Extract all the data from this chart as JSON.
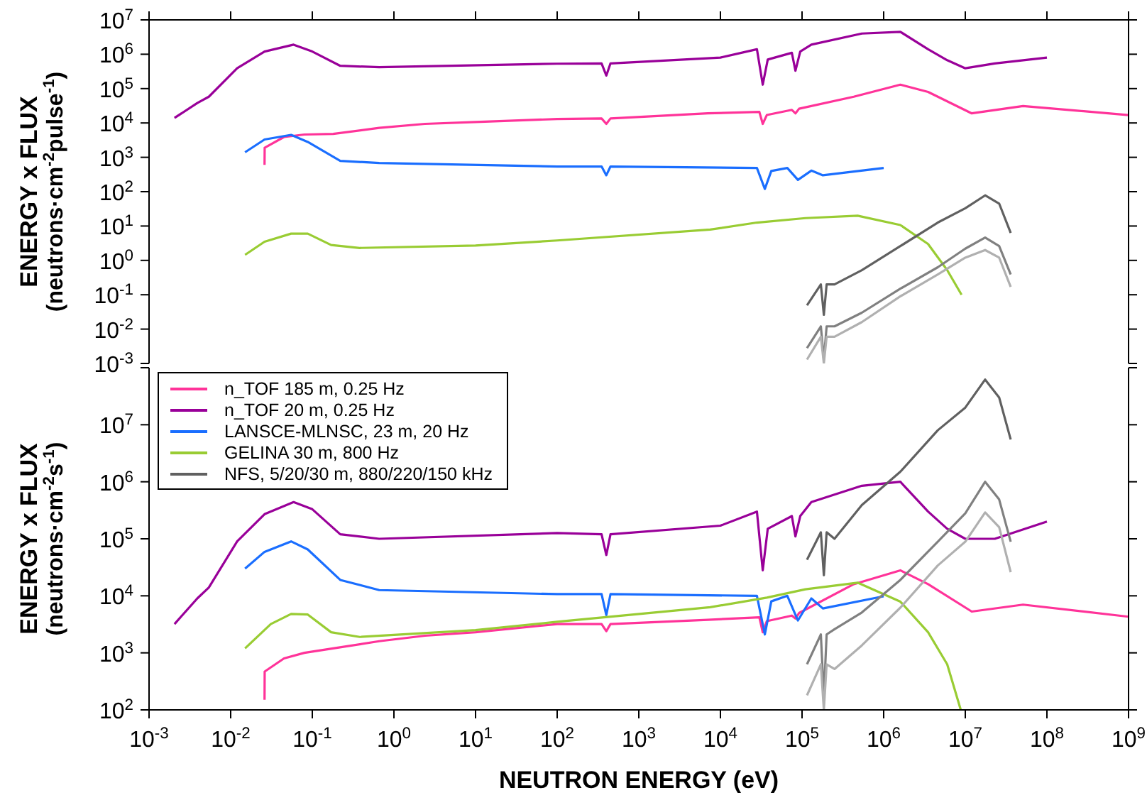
{
  "chart_data": [
    {
      "type": "line",
      "ylabel": "ENERGY x FLUX (neutrons·cm$^{-2}$pulse$^{-1}$)",
      "log": "xy",
      "legend": false,
      "marker": "none",
      "tick_labels": "y",
      "xlim": [
        0.001,
        1000000000
      ],
      "xticks": [
        {
          "value": 0.001,
          "label": null
        },
        {
          "value": 0.01,
          "label": null
        },
        {
          "value": 0.1,
          "label": null
        },
        {
          "value": 1,
          "label": null
        },
        {
          "value": 10,
          "label": null
        },
        {
          "value": 100,
          "label": null
        },
        {
          "value": 1000,
          "label": null
        },
        {
          "value": 10000,
          "label": null
        },
        {
          "value": 100000,
          "label": null
        },
        {
          "value": 1000000,
          "label": null
        },
        {
          "value": 10000000,
          "label": null
        },
        {
          "value": 100000000,
          "label": null
        },
        {
          "value": 1000000000,
          "label": null
        }
      ],
      "ylim": [
        0.001,
        10000000
      ],
      "yticks": [
        {
          "value": 0.001,
          "label": "10$^{-3}$"
        },
        {
          "value": 0.01,
          "label": "10$^{-2}$"
        },
        {
          "value": 0.1,
          "label": "10$^{-1}$"
        },
        {
          "value": 1,
          "label": "10$^{0}$"
        },
        {
          "value": 10,
          "label": "10$^{1}$"
        },
        {
          "value": 100,
          "label": "10$^{2}$"
        },
        {
          "value": 1000,
          "label": "10$^{3}$"
        },
        {
          "value": 10000,
          "label": "10$^{4}$"
        },
        {
          "value": 100000,
          "label": "10$^{5}$"
        },
        {
          "value": 1000000,
          "label": "10$^{6}$"
        },
        {
          "value": 10000000,
          "label": "10$^{7}$"
        }
      ],
      "series": [
        {
          "color": "#ff3399",
          "x": [
            0.026,
            0.0261,
            0.045,
            0.08,
            0.18,
            0.66,
            2.4,
            10,
            100,
            350,
            400,
            450,
            7000,
            30000,
            33000,
            37000,
            75000,
            83000,
            92000,
            430000,
            1600000,
            3500000,
            12000000,
            51000000,
            1000000000
          ],
          "values": [
            600,
            1900,
            3900,
            4600,
            4800,
            7200,
            9400,
            10700,
            13000,
            13500,
            9400,
            13500,
            19000,
            21000,
            9400,
            17000,
            24000,
            19000,
            26000,
            58000,
            130000,
            80000,
            19000,
            31000,
            17000
          ]
        },
        {
          "color": "#990099",
          "x": [
            0.00205,
            0.0039,
            0.0054,
            0.012,
            0.026,
            0.059,
            0.1,
            0.22,
            0.66,
            100,
            350,
            400,
            450,
            10000,
            28000,
            33000,
            38000,
            75000,
            83000,
            95000,
            130000,
            540000,
            1600000,
            3500000,
            6000000,
            10000000,
            23000000,
            100000000
          ],
          "values": [
            14000,
            38000,
            58000,
            390000,
            1200000,
            1900000,
            1200000,
            460000,
            420000,
            530000,
            540000,
            240000,
            540000,
            800000,
            1400000,
            130000,
            700000,
            1100000,
            330000,
            1200000,
            1900000,
            4000000,
            4500000,
            1400000,
            670000,
            390000,
            540000,
            800000
          ]
        },
        {
          "color": "#1a6eff",
          "x": [
            0.015,
            0.026,
            0.055,
            0.088,
            0.22,
            0.66,
            100,
            350,
            400,
            450,
            28000,
            35000,
            42000,
            66000,
            89000,
            130000,
            180000,
            1000000
          ],
          "values": [
            1400,
            3300,
            4500,
            2800,
            790,
            680,
            540,
            540,
            300,
            540,
            490,
            120,
            400,
            490,
            220,
            410,
            300,
            490
          ]
        },
        {
          "color": "#99cc33",
          "x": [
            0.015,
            0.026,
            0.055,
            0.088,
            0.17,
            0.38,
            10,
            100,
            7500,
            28000,
            110000,
            480000,
            1600000,
            3500000,
            6000000,
            9000000
          ],
          "values": [
            1.45,
            3.5,
            6,
            6,
            2.8,
            2.3,
            2.7,
            3.8,
            7.9,
            12.6,
            17,
            20,
            10.7,
            3,
            0.52,
            0.1
          ]
        },
        {
          "color": "#606060",
          "x": [
            115000,
            170000,
            185000,
            200000,
            250000,
            540000,
            1600000,
            4600000,
            10000000,
            17500000,
            26000000,
            36000000
          ],
          "values": [
            0.049,
            0.2,
            0.026,
            0.2,
            0.2,
            0.52,
            2.6,
            12.6,
            33,
            78,
            45,
            6.3
          ]
        },
        {
          "color": "#808080",
          "x": [
            115000,
            170000,
            185000,
            200000,
            250000,
            540000,
            1600000,
            4600000,
            10000000,
            17500000,
            26000000,
            36000000
          ],
          "values": [
            0.0028,
            0.012,
            0.0013,
            0.012,
            0.012,
            0.03,
            0.15,
            0.63,
            2.2,
            4.6,
            2.6,
            0.39
          ]
        },
        {
          "color": "#b0b0b0",
          "x": [
            115000,
            170000,
            185000,
            200000,
            250000,
            540000,
            1600000,
            4600000,
            10000000,
            17500000,
            26000000,
            36000000
          ],
          "values": [
            0.0013,
            0.006,
            0.001,
            0.006,
            0.006,
            0.016,
            0.09,
            0.39,
            1.2,
            2,
            1.2,
            0.17
          ]
        }
      ]
    },
    {
      "type": "line",
      "xlabel": "NEUTRON ENERGY (eV)",
      "ylabel": "ENERGY x FLUX (neutrons·cm$^{-2}$s$^{-1}$)",
      "log": "xy",
      "legend": "top left",
      "marker": "none",
      "xlim": [
        0.001,
        1000000000
      ],
      "xticks": [
        {
          "value": 0.001,
          "label": "10$^{-3}$"
        },
        {
          "value": 0.01,
          "label": "10$^{-2}$"
        },
        {
          "value": 0.1,
          "label": "10$^{-1}$"
        },
        {
          "value": 1,
          "label": "10$^{0}$"
        },
        {
          "value": 10,
          "label": "10$^{1}$"
        },
        {
          "value": 100,
          "label": "10$^{2}$"
        },
        {
          "value": 1000,
          "label": "10$^{3}$"
        },
        {
          "value": 10000,
          "label": "10$^{4}$"
        },
        {
          "value": 100000,
          "label": "10$^{5}$"
        },
        {
          "value": 1000000,
          "label": "10$^{6}$"
        },
        {
          "value": 10000000,
          "label": "10$^{7}$"
        },
        {
          "value": 100000000,
          "label": "10$^{8}$"
        },
        {
          "value": 1000000000,
          "label": "10$^{9}$"
        }
      ],
      "ylim": [
        100,
        100000000
      ],
      "yticks": [
        {
          "value": 100,
          "label": "10$^{2}$"
        },
        {
          "value": 1000,
          "label": "10$^{3}$"
        },
        {
          "value": 10000,
          "label": "10$^{4}$"
        },
        {
          "value": 100000,
          "label": "10$^{5}$"
        },
        {
          "value": 1000000,
          "label": "10$^{6}$"
        },
        {
          "value": 10000000,
          "label": "10$^{7}$"
        },
        {
          "value": 100000000,
          "label": null
        }
      ],
      "series": [
        {
          "name": "n_TOF 185 m, 0.25 Hz",
          "color": "#ff3399",
          "x": [
            0.026,
            0.0261,
            0.045,
            0.08,
            0.18,
            0.66,
            2.4,
            10,
            100,
            350,
            400,
            450,
            7000,
            30000,
            33000,
            37000,
            75000,
            83000,
            92000,
            430000,
            1600000,
            3500000,
            12000000,
            51000000,
            1000000000
          ],
          "values": [
            150,
            470,
            800,
            1000,
            1200,
            1600,
            2000,
            2300,
            3200,
            3200,
            2400,
            3200,
            3800,
            4200,
            2300,
            3600,
            4500,
            4000,
            5000,
            16000,
            28000,
            16000,
            5300,
            7000,
            4300
          ]
        },
        {
          "name": "n_TOF 20 m, 0.25 Hz",
          "color": "#990099",
          "x": [
            0.00205,
            0.0039,
            0.0054,
            0.012,
            0.026,
            0.059,
            0.1,
            0.22,
            0.66,
            100,
            350,
            400,
            450,
            10000,
            28000,
            33000,
            38000,
            75000,
            83000,
            95000,
            130000,
            540000,
            1600000,
            3500000,
            6000000,
            10000000,
            23000000,
            100000000
          ],
          "values": [
            3200,
            9000,
            14000,
            90000,
            270000,
            440000,
            330000,
            120000,
            100000,
            126000,
            120000,
            52000,
            120000,
            170000,
            300000,
            28000,
            150000,
            250000,
            110000,
            250000,
            440000,
            850000,
            1000000,
            300000,
            150000,
            100000,
            100000,
            200000
          ]
        },
        {
          "name": "LANSCE-MLNSC, 23 m, 20 Hz",
          "color": "#1a6eff",
          "x": [
            0.015,
            0.026,
            0.055,
            0.088,
            0.22,
            0.66,
            100,
            350,
            400,
            450,
            28000,
            35000,
            42000,
            66000,
            89000,
            130000,
            180000,
            1000000
          ],
          "values": [
            30000,
            59000,
            90000,
            65000,
            19000,
            12600,
            10700,
            10700,
            4600,
            10700,
            10000,
            2100,
            8000,
            10000,
            3700,
            9000,
            6000,
            9800
          ]
        },
        {
          "name": "GELINA 30 m, 800 Hz",
          "color": "#99cc33",
          "x": [
            0.015,
            0.031,
            0.055,
            0.088,
            0.17,
            0.38,
            10,
            100,
            7500,
            37000,
            110000,
            480000,
            1600000,
            3500000,
            6000000,
            8800000
          ],
          "values": [
            1200,
            3200,
            4800,
            4700,
            2300,
            1900,
            2500,
            3500,
            6300,
            9300,
            13000,
            17000,
            7900,
            2300,
            630,
            100
          ]
        },
        {
          "name": "NFS, 5/20/30 m, 880/220/150 kHz",
          "color": "#606060",
          "x": [
            115000,
            170000,
            185000,
            200000,
            250000,
            540000,
            1600000,
            4600000,
            10000000,
            17500000,
            26000000,
            36000000
          ],
          "values": [
            43000,
            130000,
            23000,
            130000,
            100000,
            390000,
            1500000,
            8000000,
            20000000,
            62000000,
            30000000,
            5500000
          ]
        },
        {
          "color": "#808080",
          "x": [
            115000,
            170000,
            185000,
            200000,
            250000,
            540000,
            1600000,
            4600000,
            10000000,
            17500000,
            26000000,
            36000000
          ],
          "values": [
            630,
            2100,
            170,
            2100,
            2600,
            5100,
            19000,
            89000,
            280000,
            1000000,
            490000,
            89000
          ]
        },
        {
          "color": "#b0b0b0",
          "x": [
            115000,
            170000,
            185000,
            200000,
            250000,
            540000,
            1600000,
            4600000,
            10000000,
            17500000,
            26000000,
            36000000
          ],
          "values": [
            180,
            630,
            100,
            630,
            520,
            1350,
            6200,
            34000,
            89000,
            290000,
            160000,
            26000
          ]
        }
      ]
    }
  ]
}
